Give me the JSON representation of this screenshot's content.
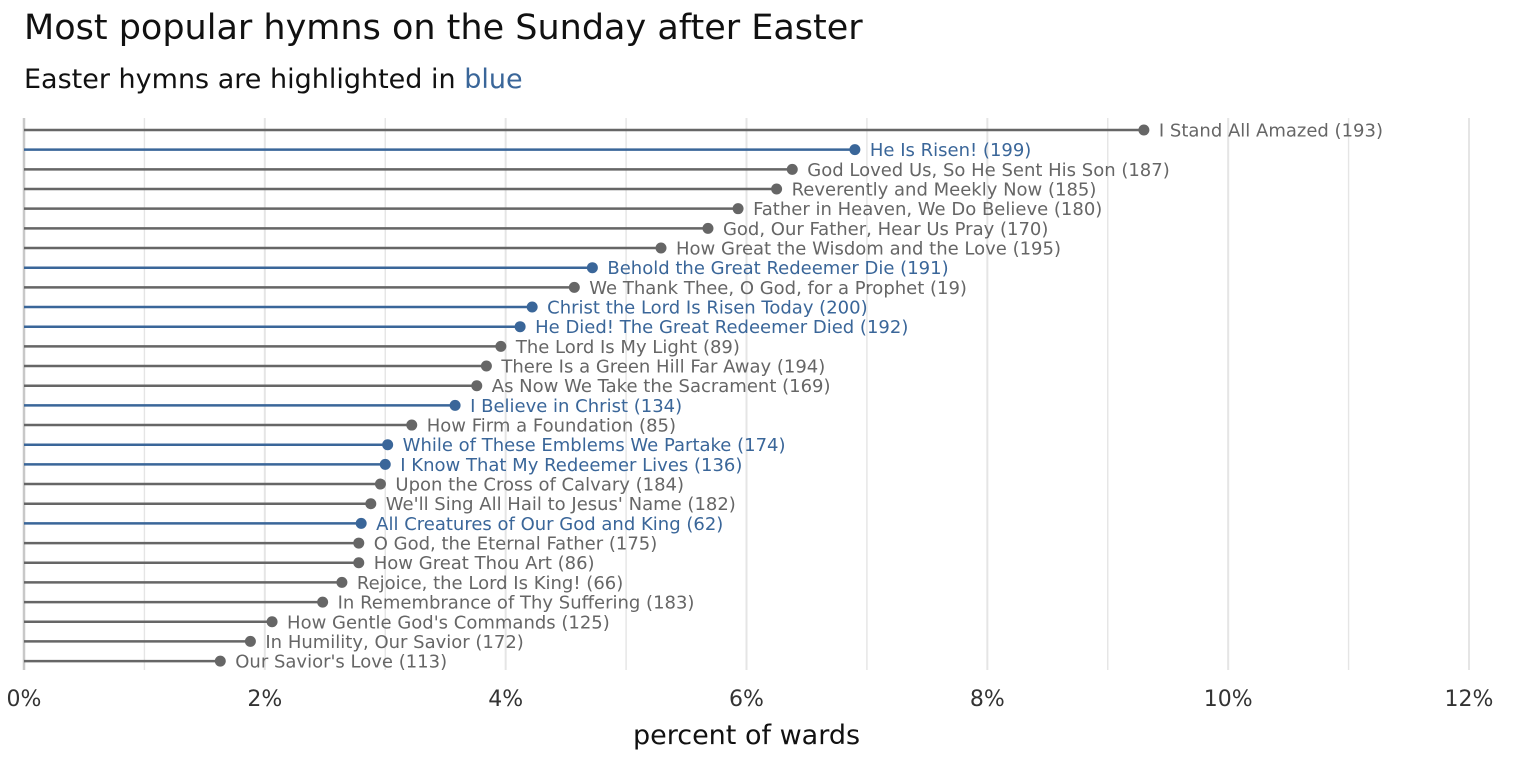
{
  "title": "Most popular hymns on the Sunday after Easter",
  "subtitle": {
    "prefix": "Easter hymns are highlighted in ",
    "highlight": "blue"
  },
  "colors": {
    "regular": "#666666",
    "easter": "#3A6699",
    "grid": "#E5E5E5",
    "axis": "#C8C8C8"
  },
  "chart_data": {
    "type": "lollipop",
    "title": "Most popular hymns on the Sunday after Easter",
    "subtitle": "Easter hymns are highlighted in blue",
    "xlabel": "percent of wards",
    "ylabel": "",
    "xlim": [
      0,
      12
    ],
    "x_ticks": [
      0,
      2,
      4,
      6,
      8,
      10,
      12
    ],
    "x_tick_labels": [
      "0%",
      "2%",
      "4%",
      "6%",
      "8%",
      "10%",
      "12%"
    ],
    "grid": true,
    "points": [
      {
        "label": "I Stand All Amazed (193)",
        "value": 9.3,
        "easter": false
      },
      {
        "label": "He Is Risen! (199)",
        "value": 6.9,
        "easter": true
      },
      {
        "label": "God Loved Us, So He Sent His Son (187)",
        "value": 6.38,
        "easter": false
      },
      {
        "label": "Reverently and Meekly Now (185)",
        "value": 6.25,
        "easter": false
      },
      {
        "label": "Father in Heaven, We Do Believe (180)",
        "value": 5.93,
        "easter": false
      },
      {
        "label": "God, Our Father, Hear Us Pray (170)",
        "value": 5.68,
        "easter": false
      },
      {
        "label": "How Great the Wisdom and the Love (195)",
        "value": 5.29,
        "easter": false
      },
      {
        "label": "Behold the Great Redeemer Die (191)",
        "value": 4.72,
        "easter": true
      },
      {
        "label": "We Thank Thee, O God, for a Prophet (19)",
        "value": 4.57,
        "easter": false
      },
      {
        "label": "Christ the Lord Is Risen Today (200)",
        "value": 4.22,
        "easter": true
      },
      {
        "label": "He Died! The Great Redeemer Died (192)",
        "value": 4.12,
        "easter": true
      },
      {
        "label": "The Lord Is My Light (89)",
        "value": 3.96,
        "easter": false
      },
      {
        "label": "There Is a Green Hill Far Away (194)",
        "value": 3.84,
        "easter": false
      },
      {
        "label": "As Now We Take the Sacrament (169)",
        "value": 3.76,
        "easter": false
      },
      {
        "label": "I Believe in Christ (134)",
        "value": 3.58,
        "easter": true
      },
      {
        "label": "How Firm a Foundation (85)",
        "value": 3.22,
        "easter": false
      },
      {
        "label": "While of These Emblems We Partake (174)",
        "value": 3.02,
        "easter": true
      },
      {
        "label": "I Know That My Redeemer Lives (136)",
        "value": 3.0,
        "easter": true
      },
      {
        "label": "Upon the Cross of Calvary (184)",
        "value": 2.96,
        "easter": false
      },
      {
        "label": "We'll Sing All Hail to Jesus' Name (182)",
        "value": 2.88,
        "easter": false
      },
      {
        "label": "All Creatures of Our God and King (62)",
        "value": 2.8,
        "easter": true
      },
      {
        "label": "O God, the Eternal Father (175)",
        "value": 2.78,
        "easter": false
      },
      {
        "label": "How Great Thou Art (86)",
        "value": 2.78,
        "easter": false
      },
      {
        "label": "Rejoice, the Lord Is King! (66)",
        "value": 2.64,
        "easter": false
      },
      {
        "label": "In Remembrance of Thy Suffering (183)",
        "value": 2.48,
        "easter": false
      },
      {
        "label": "How Gentle God's Commands (125)",
        "value": 2.06,
        "easter": false
      },
      {
        "label": "In Humility, Our Savior (172)",
        "value": 1.88,
        "easter": false
      },
      {
        "label": "Our Savior's Love (113)",
        "value": 1.63,
        "easter": false
      }
    ]
  }
}
